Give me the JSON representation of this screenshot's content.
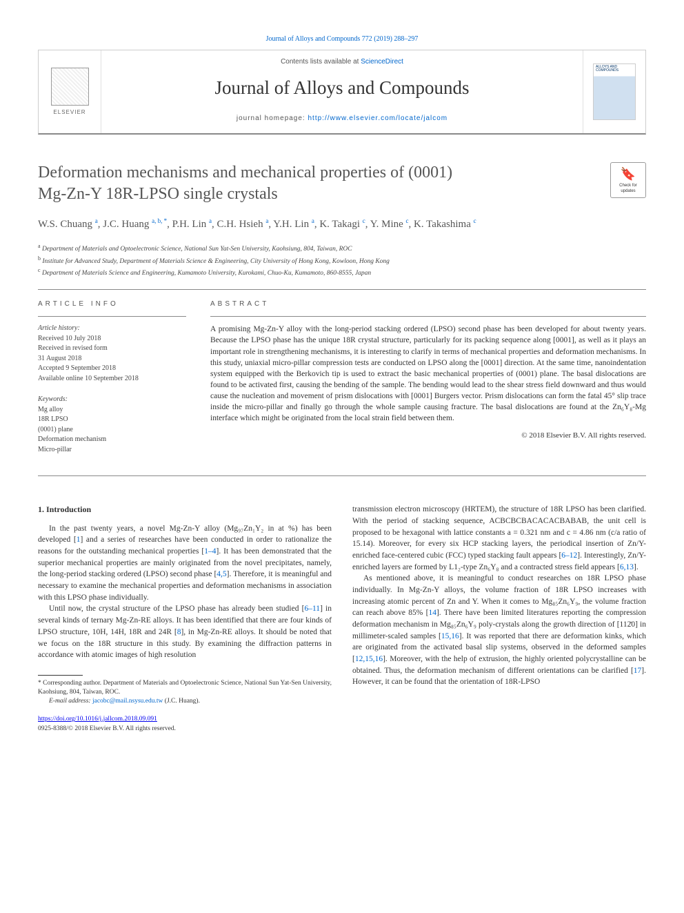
{
  "top_citation_link": "Journal of Alloys and Compounds 772 (2019) 288–297",
  "header": {
    "contents_prefix": "Contents lists available at ",
    "contents_link": "ScienceDirect",
    "journal_name": "Journal of Alloys and Compounds",
    "homepage_prefix": "journal homepage: ",
    "homepage_url": "http://www.elsevier.com/locate/jalcom",
    "publisher_word": "ELSEVIER",
    "cover_small_title": "ALLOYS AND COMPOUNDS"
  },
  "updates_badge": {
    "top": "Check for",
    "bottom": "updates"
  },
  "title_line1": "Deformation mechanisms and mechanical properties of (0001)",
  "title_line2": "Mg-Zn-Y 18R-LPSO single crystals",
  "authors_html": "W.S. Chuang <sup>a</sup>, J.C. Huang <sup>a, b, *</sup>, P.H. Lin <sup>a</sup>, C.H. Hsieh <sup>a</sup>, Y.H. Lin <sup>a</sup>, K. Takagi <sup>c</sup>, Y. Mine <sup>c</sup>, K. Takashima <sup>c</sup>",
  "affiliations": [
    {
      "sup": "a",
      "text": "Department of Materials and Optoelectronic Science, National Sun Yat-Sen University, Kaohsiung, 804, Taiwan, ROC"
    },
    {
      "sup": "b",
      "text": "Institute for Advanced Study, Department of Materials Science & Engineering, City University of Hong Kong, Kowloon, Hong Kong"
    },
    {
      "sup": "c",
      "text": "Department of Materials Science and Engineering, Kumamoto University, Kurokami, Chuo-Ku, Kumamoto, 860-8555, Japan"
    }
  ],
  "article_info_label": "ARTICLE INFO",
  "abstract_label": "ABSTRACT",
  "history": {
    "head": "Article history:",
    "lines": [
      "Received 10 July 2018",
      "Received in revised form",
      "31 August 2018",
      "Accepted 9 September 2018",
      "Available online 10 September 2018"
    ]
  },
  "keywords": {
    "head": "Keywords:",
    "items": [
      "Mg alloy",
      "18R LPSO",
      "(0001) plane",
      "Deformation mechanism",
      "Micro-pillar"
    ]
  },
  "abstract_text": "A promising Mg-Zn-Y alloy with the long-period stacking ordered (LPSO) second phase has been developed for about twenty years. Because the LPSO phase has the unique 18R crystal structure, particularly for its packing sequence along [0001], as well as it plays an important role in strengthening mechanisms, it is interesting to clarify in terms of mechanical properties and deformation mechanisms. In this study, uniaxial micro-pillar compression tests are conducted on LPSO along the [0001] direction. At the same time, nanoindentation system equipped with the Berkovich tip is used to extract the basic mechanical properties of (0001) plane. The basal dislocations are found to be activated first, causing the bending of the sample. The bending would lead to the shear stress field downward and thus would cause the nucleation and movement of prism dislocations with [0001] Burgers vector. Prism dislocations can form the fatal 45° slip trace inside the micro-pillar and finally go through the whole sample causing fracture. The basal dislocations are found at the Zn₆Y₈-Mg interface which might be originated from the local strain field between them.",
  "abstract_copyright": "© 2018 Elsevier B.V. All rights reserved.",
  "section1_heading": "1. Introduction",
  "col_left_paras": [
    "In the past twenty years, a novel Mg-Zn-Y alloy (Mg₉₇Zn₁Y₂ in at %) has been developed [<span class=\"ref-link\">1</span>] and a series of researches have been conducted in order to rationalize the reasons for the outstanding mechanical properties [<span class=\"ref-link\">1–4</span>]. It has been demonstrated that the superior mechanical properties are mainly originated from the novel precipitates, namely, the long-period stacking ordered (LPSO) second phase [<span class=\"ref-link\">4,5</span>]. Therefore, it is meaningful and necessary to examine the mechanical properties and deformation mechanisms in association with this LPSO phase individually.",
    "Until now, the crystal structure of the LPSO phase has already been studied [<span class=\"ref-link\">6–11</span>] in several kinds of ternary Mg-Zn-RE alloys. It has been identified that there are four kinds of LPSO structure, 10H, 14H, 18R and 24R [<span class=\"ref-link\">8</span>], in Mg-Zn-RE alloys. It should be noted that we focus on the 18R structure in this study. By examining the diffraction patterns in accordance with atomic images of high resolution"
  ],
  "col_right_paras": [
    "transmission electron microscopy (HRTEM), the structure of 18R LPSO has been clarified. With the period of stacking sequence, ACBCBCBACACACBABAB, the unit cell is proposed to be hexagonal with lattice constants a = 0.321 nm and c = 4.86 nm (c/a ratio of 15.14). Moreover, for every six HCP stacking layers, the periodical insertion of Zn/Y-enriched face-centered cubic (FCC) typed stacking fault appears [<span class=\"ref-link\">6–12</span>]. Interestingly, Zn/Y-enriched layers are formed by L1₂-type Zn₆Y₈ and a contracted stress field appears [<span class=\"ref-link\">6,13</span>].",
    "As mentioned above, it is meaningful to conduct researches on 18R LPSO phase individually. In Mg-Zn-Y alloys, the volume fraction of 18R LPSO increases with increasing atomic percent of Zn and Y. When it comes to Mg₈₅Zn₆Y₉, the volume fraction can reach above 85% [<span class=\"ref-link\">14</span>]. There have been limited literatures reporting the compression deformation mechanism in Mg₈₅Zn₆Y₉ poly-crystals along the growth direction of [112̄0] in millimeter-scaled samples [<span class=\"ref-link\">15,16</span>]. It was reported that there are deformation kinks, which are originated from the activated basal slip systems, observed in the deformed samples [<span class=\"ref-link\">12,15,16</span>]. Moreover, with the help of extrusion, the highly oriented polycrystalline can be obtained. Thus, the deformation mechanism of different orientations can be clarified [<span class=\"ref-link\">17</span>]. However, it can be found that the orientation of 18R-LPSO"
  ],
  "footer": {
    "corr_text": "* Corresponding author. Department of Materials and Optoelectronic Science, National Sun Yat-Sen University, Kaohsiung, 804, Taiwan, ROC.",
    "email_label": "E-mail address: ",
    "email": "jacobc@mail.nsysu.edu.tw",
    "email_suffix": " (J.C. Huang).",
    "doi_url": "https://doi.org/10.1016/j.jallcom.2018.09.091",
    "issn_line": "0925-8388/© 2018 Elsevier B.V. All rights reserved."
  },
  "colors": {
    "link": "#0066cc",
    "text": "#333333",
    "rule": "#888888",
    "muted": "#555555"
  }
}
